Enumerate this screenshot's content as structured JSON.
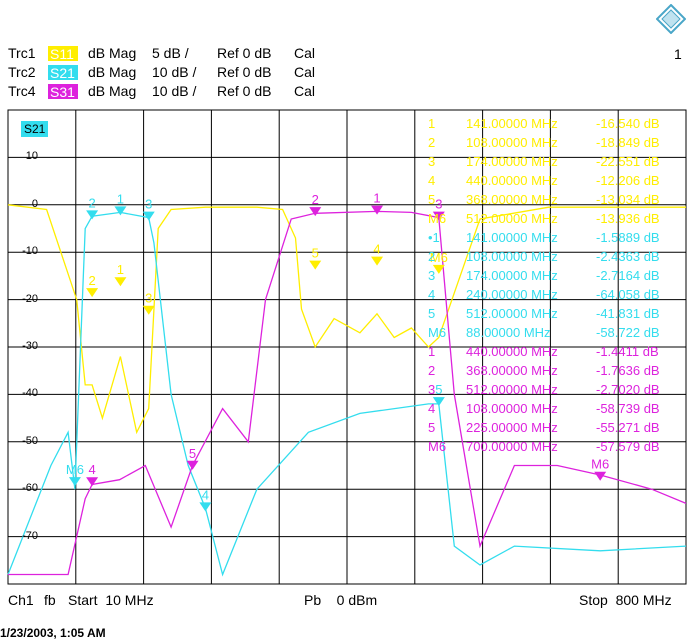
{
  "page_number": "1",
  "traces": [
    {
      "name": "Trc1",
      "param": "S11",
      "format": "dB Mag",
      "scale": "5 dB /",
      "ref": "Ref 0 dB",
      "cal": "Cal",
      "color": "#ffee00"
    },
    {
      "name": "Trc2",
      "param": "S21",
      "format": "dB Mag",
      "scale": "10 dB /",
      "ref": "Ref 0 dB",
      "cal": "Cal",
      "color": "#33ddee"
    },
    {
      "name": "Trc4",
      "param": "S31",
      "format": "dB Mag",
      "scale": "10 dB /",
      "ref": "Ref 0 dB",
      "cal": "Cal",
      "color": "#dd22dd"
    }
  ],
  "active_trace_label": "S21",
  "y_ticks": [
    "10",
    "0",
    "-10",
    "-20",
    "-30",
    "-40",
    "-50",
    "-60",
    "-70"
  ],
  "marker_table": [
    {
      "id": "1",
      "freq": "141.00000 MHz",
      "val": "-16.540 dB",
      "color": "#ffee00"
    },
    {
      "id": "2",
      "freq": "108.00000 MHz",
      "val": "-18.849 dB",
      "color": "#ffee00"
    },
    {
      "id": "3",
      "freq": "174.00000 MHz",
      "val": "-22.551 dB",
      "color": "#ffee00"
    },
    {
      "id": "4",
      "freq": "440.00000 MHz",
      "val": "-12.206 dB",
      "color": "#ffee00"
    },
    {
      "id": "5",
      "freq": "368.00000 MHz",
      "val": "-13.034 dB",
      "color": "#ffee00"
    },
    {
      "id": "M6",
      "freq": "512.00000 MHz",
      "val": "-13.936 dB",
      "color": "#ffee00"
    },
    {
      "id": "•1",
      "freq": "141.00000 MHz",
      "val": "-1.5889 dB",
      "color": "#33ddee"
    },
    {
      "id": "2",
      "freq": "108.00000 MHz",
      "val": "-2.4363 dB",
      "color": "#33ddee"
    },
    {
      "id": "3",
      "freq": "174.00000 MHz",
      "val": "-2.7164 dB",
      "color": "#33ddee"
    },
    {
      "id": "4",
      "freq": "240.00000 MHz",
      "val": "-64.058 dB",
      "color": "#33ddee"
    },
    {
      "id": "5",
      "freq": "512.00000 MHz",
      "val": "-41.831 dB",
      "color": "#33ddee"
    },
    {
      "id": "M6",
      "freq": "88.00000 MHz",
      "val": "-58.722 dB",
      "color": "#33ddee"
    },
    {
      "id": "1",
      "freq": "440.00000 MHz",
      "val": "-1.4411 dB",
      "color": "#dd22dd"
    },
    {
      "id": "2",
      "freq": "368.00000 MHz",
      "val": "-1.7636 dB",
      "color": "#dd22dd"
    },
    {
      "id": "3",
      "freq": "512.00000 MHz",
      "val": "-2.7020 dB",
      "color": "#dd22dd"
    },
    {
      "id": "4",
      "freq": "108.00000 MHz",
      "val": "-58.739 dB",
      "color": "#dd22dd"
    },
    {
      "id": "5",
      "freq": "225.00000 MHz",
      "val": "-55.271 dB",
      "color": "#dd22dd"
    },
    {
      "id": "M6",
      "freq": "700.00000 MHz",
      "val": "-57.579 dB",
      "color": "#dd22dd"
    }
  ],
  "footer": {
    "channel": "Ch1",
    "mode": "fb",
    "start": "Start  10 MHz",
    "power": "Pb    0 dBm",
    "stop": "Stop  800 MHz"
  },
  "timestamp": "1/23/2003, 1:05 AM",
  "chart_data": {
    "type": "line",
    "xlabel": "",
    "ylabel": "",
    "x_range_mhz": [
      10,
      800
    ],
    "ylim": [
      -80,
      20
    ],
    "y_unit": "dB",
    "grid": true,
    "series": [
      {
        "name": "S11",
        "color": "#ffee00",
        "x": [
          10,
          55,
          90,
          100,
          108,
          120,
          141,
          160,
          174,
          185,
          200,
          240,
          300,
          330,
          345,
          352,
          368,
          390,
          420,
          440,
          460,
          480,
          500,
          512,
          560,
          640,
          720,
          800
        ],
        "y": [
          0,
          -1,
          -20,
          -38,
          -38,
          -45,
          -32,
          -48,
          -43,
          -5,
          -1,
          -0.5,
          -0.5,
          -1,
          -7,
          -22,
          -30,
          -24,
          -27,
          -23,
          -28,
          -26,
          -30,
          -28,
          -3,
          -0.5,
          -0.5,
          -0.5
        ]
      },
      {
        "name": "S21",
        "color": "#33ddee",
        "x": [
          10,
          60,
          80,
          88,
          100,
          108,
          141,
          174,
          180,
          200,
          220,
          240,
          260,
          300,
          360,
          420,
          500,
          512,
          530,
          560,
          600,
          700,
          800
        ],
        "y": [
          -78,
          -55,
          -48,
          -60,
          -5,
          -2.4,
          -1.6,
          -2.7,
          -8,
          -40,
          -55,
          -64,
          -78,
          -60,
          -48,
          -44,
          -42,
          -42,
          -72,
          -76,
          -72,
          -73,
          -72
        ]
      },
      {
        "name": "S31",
        "color": "#dd22dd",
        "x": [
          10,
          80,
          100,
          108,
          140,
          170,
          200,
          225,
          260,
          290,
          310,
          340,
          368,
          440,
          480,
          512,
          530,
          560,
          600,
          650,
          700,
          760,
          800
        ],
        "y": [
          -78,
          -78,
          -62,
          -59,
          -58,
          -55,
          -68,
          -55,
          -43,
          -50,
          -20,
          -3,
          -1.8,
          -1.4,
          -1.6,
          -2.7,
          -40,
          -72,
          -55,
          -55,
          -57,
          -60,
          -63
        ]
      }
    ],
    "markers": [
      {
        "trace": "S11",
        "label": "1",
        "x": 141,
        "y": -16.54
      },
      {
        "trace": "S11",
        "label": "2",
        "x": 108,
        "y": -18.849
      },
      {
        "trace": "S11",
        "label": "3",
        "x": 174,
        "y": -22.551
      },
      {
        "trace": "S11",
        "label": "4",
        "x": 440,
        "y": -12.206
      },
      {
        "trace": "S11",
        "label": "5",
        "x": 368,
        "y": -13.034
      },
      {
        "trace": "S11",
        "label": "M6",
        "x": 512,
        "y": -13.936
      },
      {
        "trace": "S21",
        "label": "1",
        "x": 141,
        "y": -1.5889
      },
      {
        "trace": "S21",
        "label": "2",
        "x": 108,
        "y": -2.4363
      },
      {
        "trace": "S21",
        "label": "3",
        "x": 174,
        "y": -2.7164
      },
      {
        "trace": "S21",
        "label": "4",
        "x": 240,
        "y": -64.058
      },
      {
        "trace": "S21",
        "label": "5",
        "x": 512,
        "y": -41.831
      },
      {
        "trace": "S21",
        "label": "M6",
        "x": 88,
        "y": -58.722
      },
      {
        "trace": "S31",
        "label": "1",
        "x": 440,
        "y": -1.4411
      },
      {
        "trace": "S31",
        "label": "2",
        "x": 368,
        "y": -1.7636
      },
      {
        "trace": "S31",
        "label": "3",
        "x": 512,
        "y": -2.702
      },
      {
        "trace": "S31",
        "label": "4",
        "x": 108,
        "y": -58.739
      },
      {
        "trace": "S31",
        "label": "5",
        "x": 225,
        "y": -55.271
      },
      {
        "trace": "S31",
        "label": "M6",
        "x": 700,
        "y": -57.579
      }
    ]
  }
}
